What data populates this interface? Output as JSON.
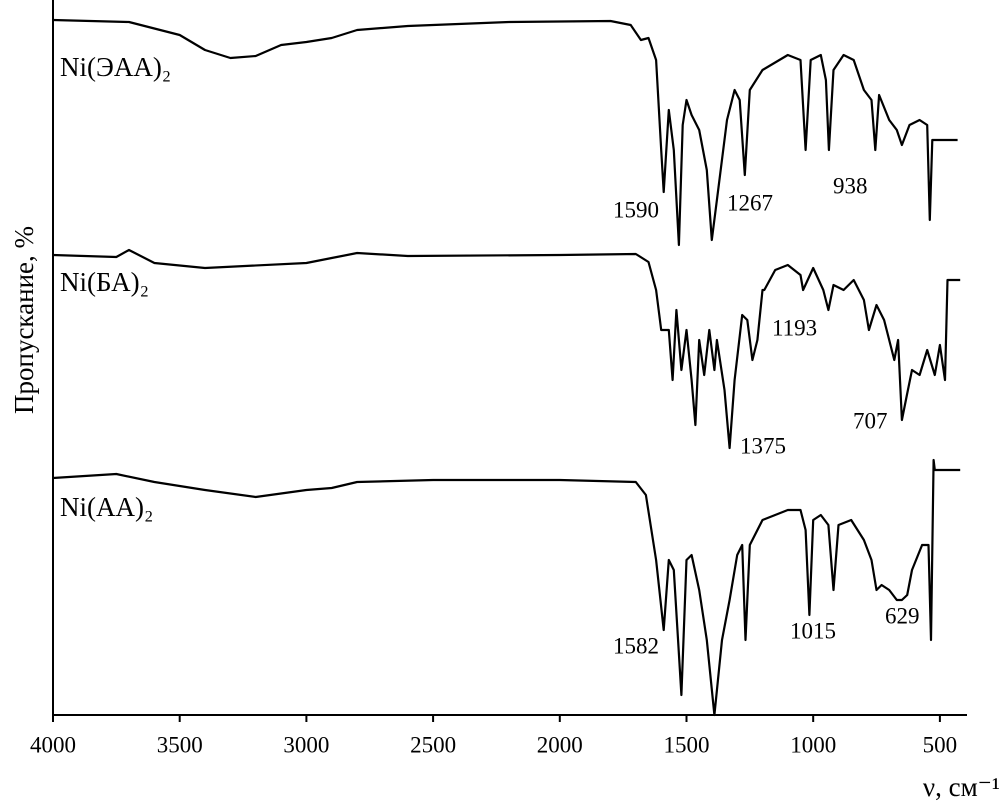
{
  "chart_data": {
    "type": "line",
    "x_label": "ν, см⁻¹",
    "y_label": "Пропускание, %",
    "xlim": [
      4000,
      393
    ],
    "ylim": [
      0,
      715
    ],
    "xticks": [
      4000,
      3500,
      3000,
      2500,
      2000,
      1500,
      1000,
      500
    ],
    "color": "#000000",
    "series": [
      {
        "name": "Ni(ЭАА)₂",
        "x": [
          4000,
          3700,
          3500,
          3400,
          3300,
          3200,
          3100,
          3000,
          2900,
          2800,
          2600,
          2200,
          1800,
          1720,
          1680,
          1650,
          1620,
          1600,
          1590,
          1570,
          1550,
          1530,
          1515,
          1500,
          1480,
          1450,
          1420,
          1400,
          1380,
          1340,
          1310,
          1290,
          1270,
          1250,
          1200,
          1100,
          1050,
          1030,
          1010,
          970,
          950,
          938,
          920,
          880,
          840,
          800,
          770,
          755,
          740,
          700,
          670,
          650,
          620,
          580,
          550,
          540,
          530,
          480,
          430
        ],
        "values": [
          695,
          693,
          680,
          665,
          657,
          659,
          670,
          673,
          677,
          685,
          689,
          693,
          694,
          690,
          675,
          677,
          655,
          565,
          523,
          605,
          565,
          470,
          590,
          615,
          600,
          585,
          545,
          475,
          515,
          595,
          625,
          615,
          540,
          625,
          645,
          660,
          655,
          565,
          655,
          660,
          635,
          565,
          645,
          660,
          655,
          625,
          615,
          565,
          620,
          595,
          585,
          570,
          590,
          595,
          590,
          495,
          575,
          575,
          575
        ]
      },
      {
        "name": "Ni(БА)₂",
        "x": [
          4000,
          3750,
          3700,
          3600,
          3400,
          3000,
          2900,
          2800,
          2600,
          2000,
          1700,
          1650,
          1620,
          1600,
          1570,
          1555,
          1540,
          1520,
          1500,
          1480,
          1465,
          1450,
          1430,
          1410,
          1390,
          1380,
          1350,
          1330,
          1310,
          1280,
          1260,
          1240,
          1220,
          1200,
          1193,
          1150,
          1100,
          1050,
          1040,
          1000,
          960,
          940,
          920,
          880,
          840,
          800,
          780,
          750,
          720,
          700,
          680,
          665,
          650,
          630,
          610,
          580,
          550,
          520,
          500,
          480,
          470,
          450,
          420
        ],
        "values": [
          460,
          458,
          465,
          452,
          447,
          452,
          457,
          462,
          459,
          460,
          461,
          453,
          425,
          385,
          385,
          335,
          405,
          345,
          385,
          335,
          290,
          375,
          340,
          385,
          345,
          375,
          325,
          267,
          335,
          400,
          395,
          355,
          375,
          425,
          425,
          445,
          450,
          440,
          425,
          447,
          425,
          405,
          430,
          425,
          435,
          415,
          385,
          410,
          395,
          375,
          355,
          375,
          295,
          320,
          345,
          340,
          365,
          340,
          370,
          335,
          435,
          435,
          435
        ]
      },
      {
        "name": "Ni(АА)₂",
        "x": [
          4000,
          3750,
          3600,
          3400,
          3200,
          3000,
          2900,
          2800,
          2500,
          2000,
          1700,
          1660,
          1620,
          1590,
          1570,
          1550,
          1520,
          1500,
          1480,
          1450,
          1420,
          1390,
          1360,
          1330,
          1300,
          1280,
          1267,
          1250,
          1200,
          1100,
          1050,
          1030,
          1015,
          1000,
          970,
          940,
          920,
          900,
          850,
          800,
          770,
          750,
          730,
          700,
          670,
          650,
          629,
          610,
          570,
          545,
          535,
          525,
          520,
          480,
          420
        ],
        "values": [
          237,
          241,
          233,
          225,
          218,
          225,
          227,
          233,
          235,
          235,
          233,
          220,
          155,
          85,
          155,
          145,
          20,
          155,
          160,
          125,
          75,
          0,
          75,
          115,
          160,
          170,
          75,
          170,
          195,
          205,
          205,
          185,
          100,
          195,
          200,
          190,
          125,
          190,
          195,
          175,
          155,
          125,
          130,
          125,
          115,
          115,
          120,
          145,
          170,
          170,
          75,
          255,
          245,
          245,
          245
        ]
      }
    ],
    "annotations": [
      "1590",
      "1267",
      "938",
      "1193",
      "1375",
      "707",
      "1582",
      "1015",
      "629"
    ]
  }
}
